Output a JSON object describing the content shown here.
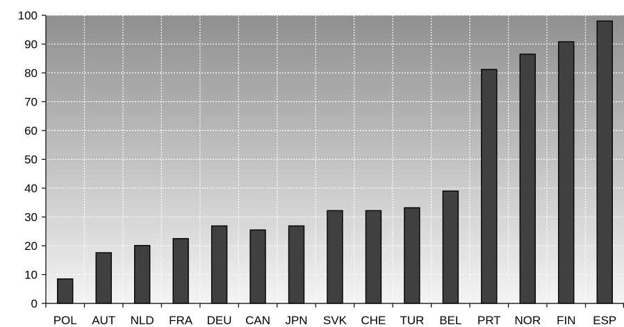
{
  "chart_data": {
    "type": "bar",
    "categories": [
      "POL",
      "AUT",
      "NLD",
      "FRA",
      "DEU",
      "CAN",
      "JPN",
      "SVK",
      "CHE",
      "TUR",
      "BEL",
      "PRT",
      "NOR",
      "FIN",
      "ESP"
    ],
    "values": [
      8.5,
      17.6,
      20.1,
      22.5,
      26.9,
      25.5,
      26.9,
      32.2,
      32.2,
      33.2,
      39,
      81.2,
      86.5,
      90.8,
      98
    ],
    "title": "",
    "xlabel": "",
    "ylabel": "",
    "ylim": [
      0,
      100
    ],
    "yticks": [
      "0",
      "10",
      "20",
      "30",
      "40",
      "50",
      "60",
      "70",
      "80",
      "90",
      "100"
    ],
    "grid": true,
    "legend": "none",
    "colors": {
      "bar_fill": "#404040",
      "bar_stroke": "#000000",
      "plot_gradient_top": "#8f8f8f",
      "plot_gradient_bottom": "#f4f4f4",
      "gridline": "#ffffff"
    }
  }
}
